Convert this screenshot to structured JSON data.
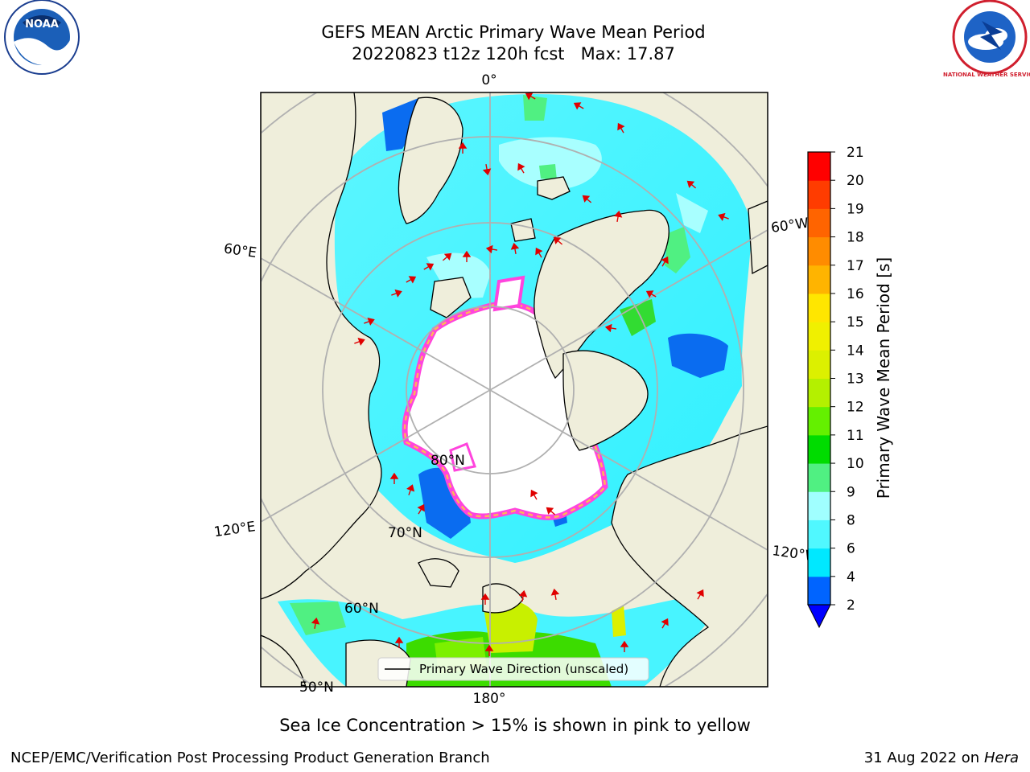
{
  "header": {
    "title_line1": "GEFS MEAN Arctic Primary Wave Mean Period",
    "title_line2": "20220823 t12z 120h fcst   Max: 17.87"
  },
  "logos": {
    "left": "NOAA",
    "right": "NATIONAL WEATHER SERVICE"
  },
  "map": {
    "projection": "north-polar-stereographic",
    "longitude_labels": [
      "0°",
      "60°W",
      "120°W",
      "180°",
      "120°E",
      "60°E"
    ],
    "latitude_labels": [
      "80°N",
      "70°N",
      "60°N",
      "50°N"
    ],
    "colors": {
      "land": "#efeedb",
      "sea_ice": "#ffffff",
      "ice_edge": "#ff44dd",
      "graticule": "#b0b0b0",
      "arrow": "#e00000"
    }
  },
  "colorbar": {
    "title": "Primary Wave Mean Period [s]",
    "tick_labels": [
      "2",
      "4",
      "6",
      "8",
      "9",
      "10",
      "11",
      "12",
      "13",
      "14",
      "15",
      "16",
      "17",
      "18",
      "19",
      "20",
      "21"
    ],
    "bin_colors": [
      "#0064ff",
      "#00e8ff",
      "#50f8ff",
      "#a0ffff",
      "#50f082",
      "#00dc00",
      "#64f000",
      "#b4f000",
      "#dcf000",
      "#f0f000",
      "#ffe600",
      "#ffb400",
      "#ff8c00",
      "#ff6400",
      "#ff3c00",
      "#ff0000"
    ],
    "under_color": "#0000ff"
  },
  "legend": {
    "label": "Primary Wave Direction (unscaled)"
  },
  "footer": {
    "subtitle": "Sea Ice Concentration > 15% is shown in pink to yellow",
    "left": "NCEP/EMC/Verification Post Processing Product Generation Branch",
    "date": "31 Aug 2022 on",
    "machine": "Hera"
  }
}
